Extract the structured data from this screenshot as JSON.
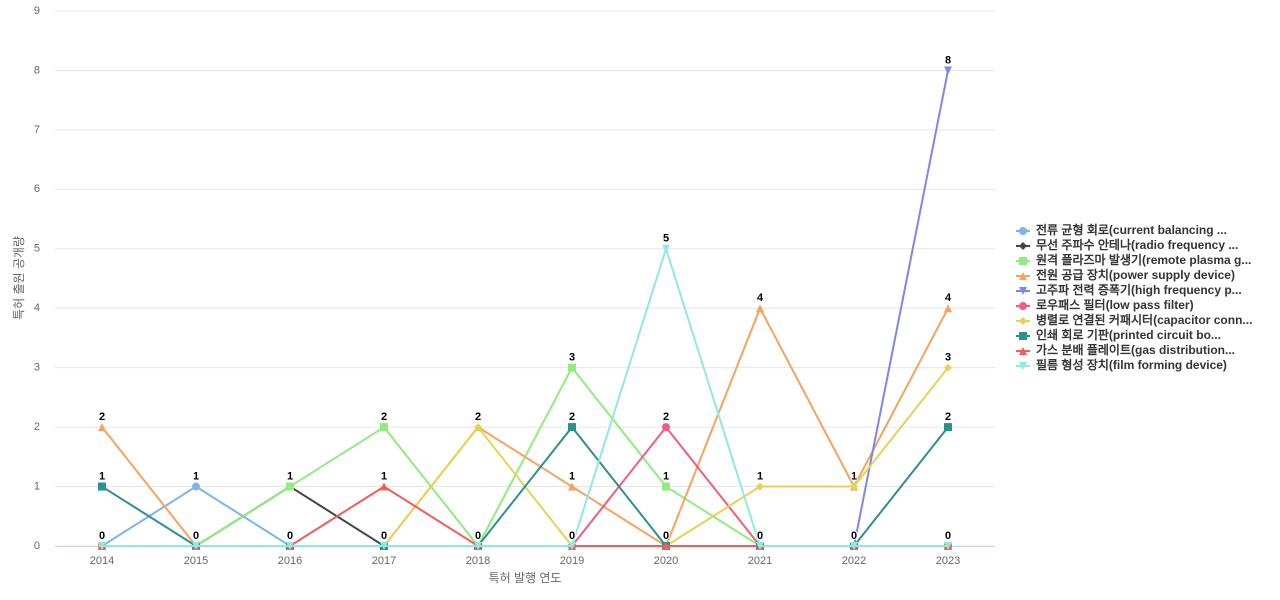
{
  "chart_data": {
    "type": "line",
    "x_label": "특허 발행 연도",
    "y_label": "특허 출원 공개량",
    "categories": [
      "2014",
      "2015",
      "2016",
      "2017",
      "2018",
      "2019",
      "2020",
      "2021",
      "2022",
      "2023"
    ],
    "ylim": [
      0,
      9
    ],
    "yticks": [
      0,
      1,
      2,
      3,
      4,
      5,
      6,
      7,
      8,
      9
    ],
    "grid": true,
    "legend": "right",
    "series": [
      {
        "name": "전류 균형 회로(current balancing ...",
        "color": "#7cb5ec",
        "values": [
          0,
          1,
          0,
          0,
          0,
          0,
          0,
          0,
          0,
          0
        ]
      },
      {
        "name": "무선 주파수 안테나(radio frequency ...",
        "color": "#434348",
        "values": [
          0,
          0,
          1,
          0,
          0,
          0,
          0,
          0,
          0,
          0
        ]
      },
      {
        "name": "원격 플라즈마 발생기(remote plasma g...",
        "color": "#90ed7d",
        "values": [
          0,
          0,
          1,
          2,
          0,
          3,
          1,
          0,
          0,
          0
        ]
      },
      {
        "name": "전원 공급 장치(power supply device)",
        "color": "#f7a35c",
        "values": [
          2,
          0,
          0,
          0,
          2,
          1,
          0,
          4,
          1,
          4
        ]
      },
      {
        "name": "고주파 전력 증폭기(high frequency p...",
        "color": "#8085e9",
        "values": [
          0,
          0,
          0,
          0,
          0,
          0,
          0,
          0,
          0,
          8
        ]
      },
      {
        "name": "로우패스 필터(low pass filter)",
        "color": "#f15c80",
        "values": [
          0,
          0,
          0,
          0,
          0,
          0,
          2,
          0,
          0,
          0
        ]
      },
      {
        "name": "병렬로 연결된 커패시터(capacitor conn...",
        "color": "#e4d354",
        "values": [
          0,
          0,
          0,
          0,
          2,
          0,
          0,
          1,
          1,
          3
        ]
      },
      {
        "name": "인쇄 회로 기판(printed circuit bo...",
        "color": "#2b908f",
        "values": [
          1,
          0,
          0,
          0,
          0,
          2,
          0,
          0,
          0,
          2
        ]
      },
      {
        "name": "가스 분배 플레이트(gas distribution...",
        "color": "#f45b5b",
        "values": [
          0,
          0,
          0,
          1,
          0,
          0,
          0,
          0,
          0,
          0
        ]
      },
      {
        "name": "필름 형성 장치(film forming device)",
        "color": "#91e8e1",
        "values": [
          0,
          0,
          0,
          0,
          0,
          0,
          5,
          0,
          0,
          0
        ]
      }
    ]
  }
}
